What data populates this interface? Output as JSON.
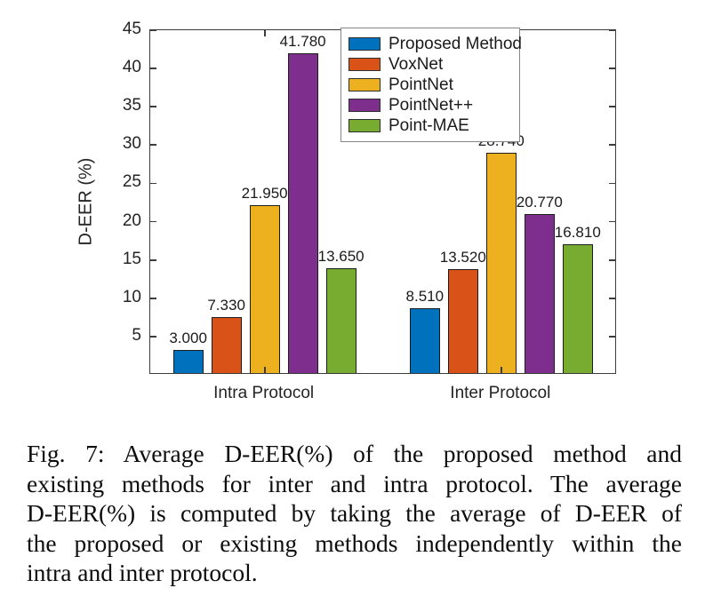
{
  "chart_data": {
    "type": "bar",
    "title": "",
    "categories": [
      "Intra Protocol",
      "Inter Protocol"
    ],
    "series": [
      {
        "name": "Proposed Method",
        "color": "#0072BD",
        "values": [
          3.0,
          8.51
        ]
      },
      {
        "name": "VoxNet",
        "color": "#D95319",
        "values": [
          7.33,
          13.52
        ]
      },
      {
        "name": "PointNet",
        "color": "#EDB120",
        "values": [
          21.95,
          28.74
        ]
      },
      {
        "name": "PointNet++",
        "color": "#7E2F8E",
        "values": [
          41.78,
          20.77
        ]
      },
      {
        "name": "Point-MAE",
        "color": "#77AC30",
        "values": [
          13.65,
          16.81
        ]
      }
    ],
    "bar_value_labels": [
      [
        "3.000",
        "7.330",
        "21.950",
        "41.780",
        "13.650"
      ],
      [
        "8.510",
        "13.520",
        "28.740",
        "20.770",
        "16.810"
      ]
    ],
    "xlabel": "",
    "ylabel": "D-EER (%)",
    "ylim": [
      0,
      45
    ],
    "yticks": [
      5,
      10,
      15,
      20,
      25,
      30,
      35,
      40,
      45
    ],
    "grid": false,
    "legend_position": "inside-top-center",
    "axis_color": "#3c3c3c"
  },
  "caption": {
    "lines": [
      "Fig. 7: Average D-EER(%) of the proposed method and",
      "existing methods for inter and intra protocol. The average",
      "D-EER(%) is computed by taking the average of D-EER of",
      "the proposed or existing methods independently within the",
      "intra and inter protocol."
    ]
  }
}
